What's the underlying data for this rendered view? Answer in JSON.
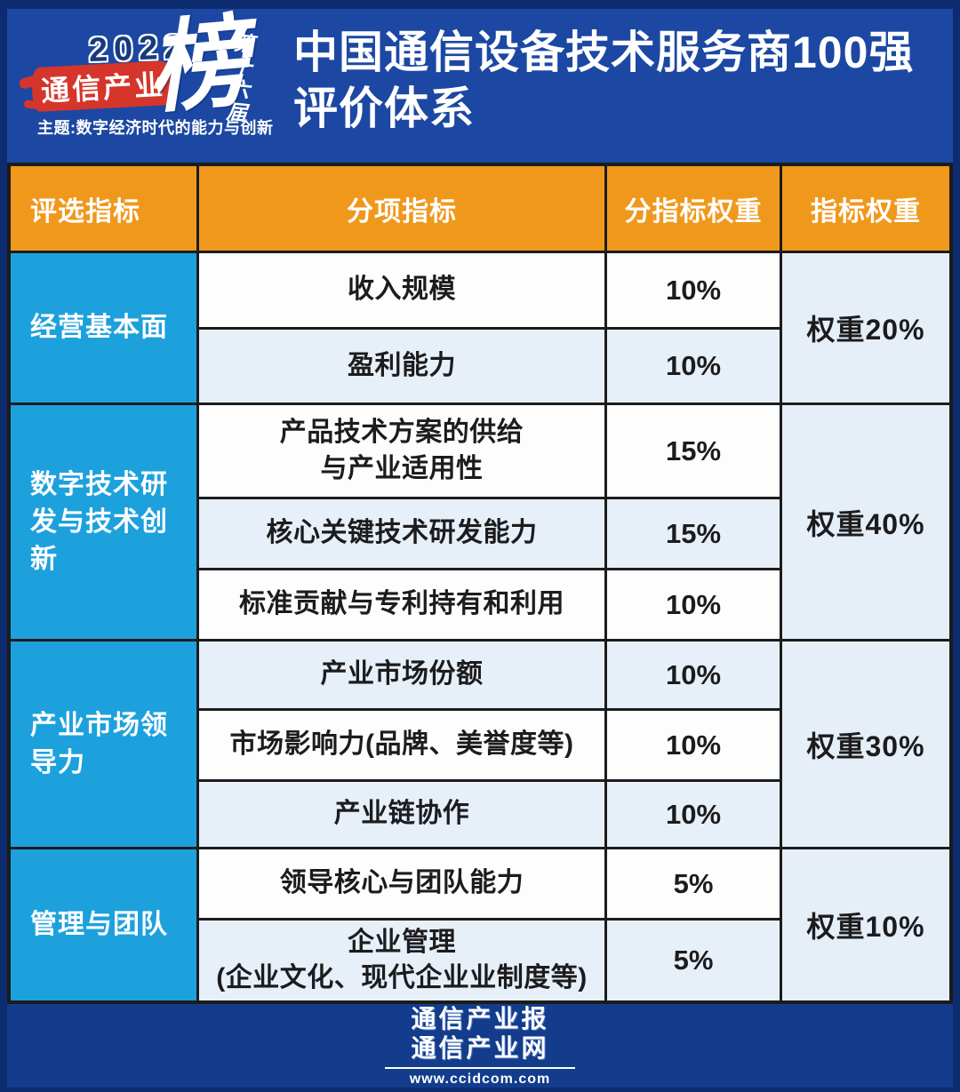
{
  "header": {
    "logo": {
      "year": "2022",
      "brand": "通信产业",
      "list_char": "榜",
      "edition": "第十六届",
      "theme": "主题:数字经济时代的能力与创新"
    },
    "title": "中国通信设备技术服务商100强\n评价体系"
  },
  "table": {
    "columns": [
      "评选指标",
      "分项指标",
      "分指标权重",
      "指标权重"
    ],
    "groups": [
      {
        "category": "经营基本面",
        "group_weight": "权重20%",
        "rows": [
          {
            "indicator": "收入规模",
            "sub_weight": "10%"
          },
          {
            "indicator": "盈利能力",
            "sub_weight": "10%"
          }
        ]
      },
      {
        "category": "数字技术研发与技术创新",
        "group_weight": "权重40%",
        "rows": [
          {
            "indicator": "产品技术方案的供给\n与产业适用性",
            "sub_weight": "15%"
          },
          {
            "indicator": "核心关键技术研发能力",
            "sub_weight": "15%"
          },
          {
            "indicator": "标准贡献与专利持有和利用",
            "sub_weight": "10%"
          }
        ]
      },
      {
        "category": "产业市场领导力",
        "group_weight": "权重30%",
        "rows": [
          {
            "indicator": "产业市场份额",
            "sub_weight": "10%"
          },
          {
            "indicator": "市场影响力(品牌、美誉度等)",
            "sub_weight": "10%"
          },
          {
            "indicator": "产业链协作",
            "sub_weight": "10%"
          }
        ]
      },
      {
        "category": "管理与团队",
        "group_weight": "权重10%",
        "rows": [
          {
            "indicator": "领导核心与团队能力",
            "sub_weight": "5%"
          },
          {
            "indicator": "企业管理\n(企业文化、现代企业业制度等)",
            "sub_weight": "5%"
          }
        ]
      }
    ]
  },
  "footer": {
    "paper": "通信产业报",
    "site": "通信产业网",
    "url": "www.ccidcom.com"
  },
  "colors": {
    "frame_blue": "#0d2c6f",
    "header_blue": "#1c48a3",
    "footer_blue": "#133c8c",
    "table_header_orange": "#f0981c",
    "category_cyan": "#1da1dd",
    "row_white": "#fdfdfd",
    "row_light_blue": "#e7f0f9",
    "weight_cell_blue": "#e6eff8",
    "grid_line": "#1c1c1c",
    "text_dark": "#1c1c1e",
    "logo_red": "#d6352b"
  }
}
